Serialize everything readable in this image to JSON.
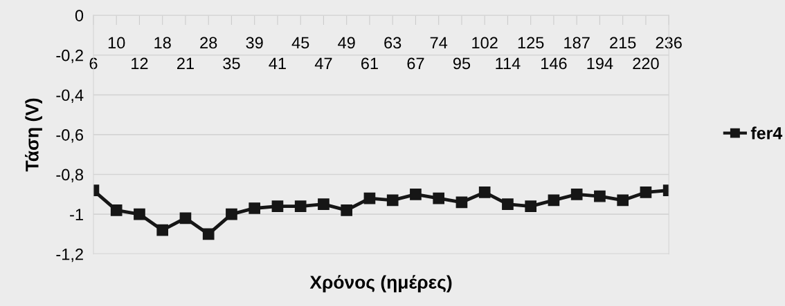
{
  "chart_data": {
    "type": "line",
    "xlabel": "Χρόνος (ημέρες)",
    "ylabel": "Τάση (V)",
    "categories": [
      "6",
      "10",
      "12",
      "18",
      "21",
      "28",
      "35",
      "39",
      "41",
      "45",
      "47",
      "49",
      "61",
      "63",
      "67",
      "74",
      "95",
      "102",
      "114",
      "125",
      "146",
      "187",
      "194",
      "215",
      "220",
      "236"
    ],
    "series": [
      {
        "name": "fer4",
        "color": "#161616",
        "values": [
          -0.88,
          -0.98,
          -1.0,
          -1.08,
          -1.02,
          -1.1,
          -1.0,
          -0.97,
          -0.96,
          -0.96,
          -0.95,
          -0.98,
          -0.92,
          -0.93,
          -0.9,
          -0.92,
          -0.94,
          -0.89,
          -0.95,
          -0.96,
          -0.93,
          -0.9,
          -0.91,
          -0.93,
          -0.89,
          -0.88
        ]
      }
    ],
    "ylim": [
      -1.2,
      0
    ],
    "yticks": [
      0,
      {
        "value": -0.2,
        "label": "-0,2"
      },
      {
        "value": -0.4,
        "label": "-0,4"
      },
      {
        "value": -0.6,
        "label": "-0,6"
      },
      {
        "value": -0.8,
        "label": "-0,8"
      },
      -1,
      {
        "value": -1.2,
        "label": "-1,2"
      }
    ],
    "grid": "y",
    "legend": "right",
    "marker": "square",
    "line_style": "solid"
  }
}
